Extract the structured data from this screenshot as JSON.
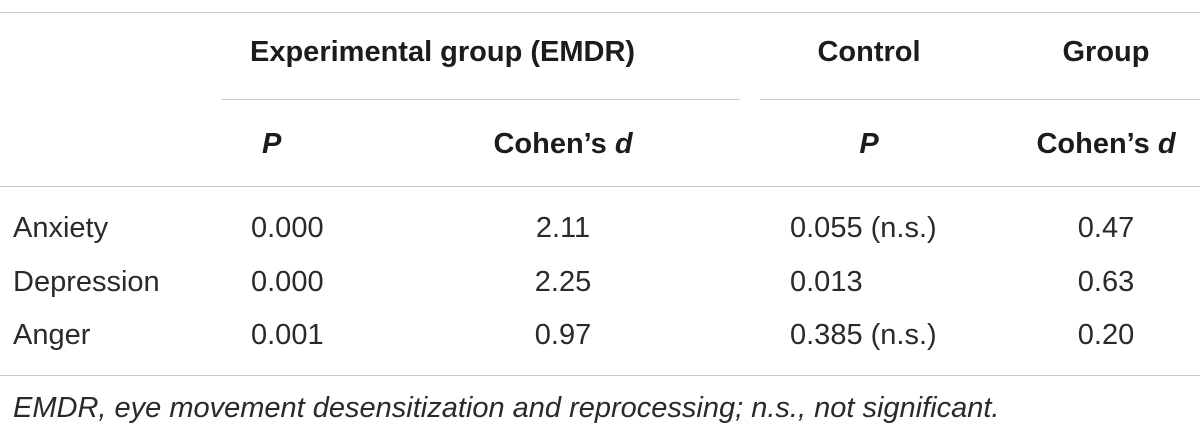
{
  "table": {
    "group_headers": {
      "experimental": "Experimental group (EMDR)",
      "control": "Control",
      "group": "Group"
    },
    "sub_headers": {
      "p": "P",
      "cohens_prefix": "Cohen’s ",
      "cohens_d": "d"
    },
    "rows": [
      {
        "label": "Anxiety",
        "exp_p": "0.000",
        "exp_d": "2.11",
        "ctrl_p": "0.055 (n.s.)",
        "group_d": "0.47"
      },
      {
        "label": "Depression",
        "exp_p": "0.000",
        "exp_d": "2.25",
        "ctrl_p": "0.013",
        "group_d": "0.63"
      },
      {
        "label": "Anger",
        "exp_p": "0.001",
        "exp_d": "0.97",
        "ctrl_p": "0.385 (n.s.)",
        "group_d": "0.20"
      }
    ],
    "footnote": "EMDR, eye movement desensitization and reprocessing; n.s., not significant."
  }
}
